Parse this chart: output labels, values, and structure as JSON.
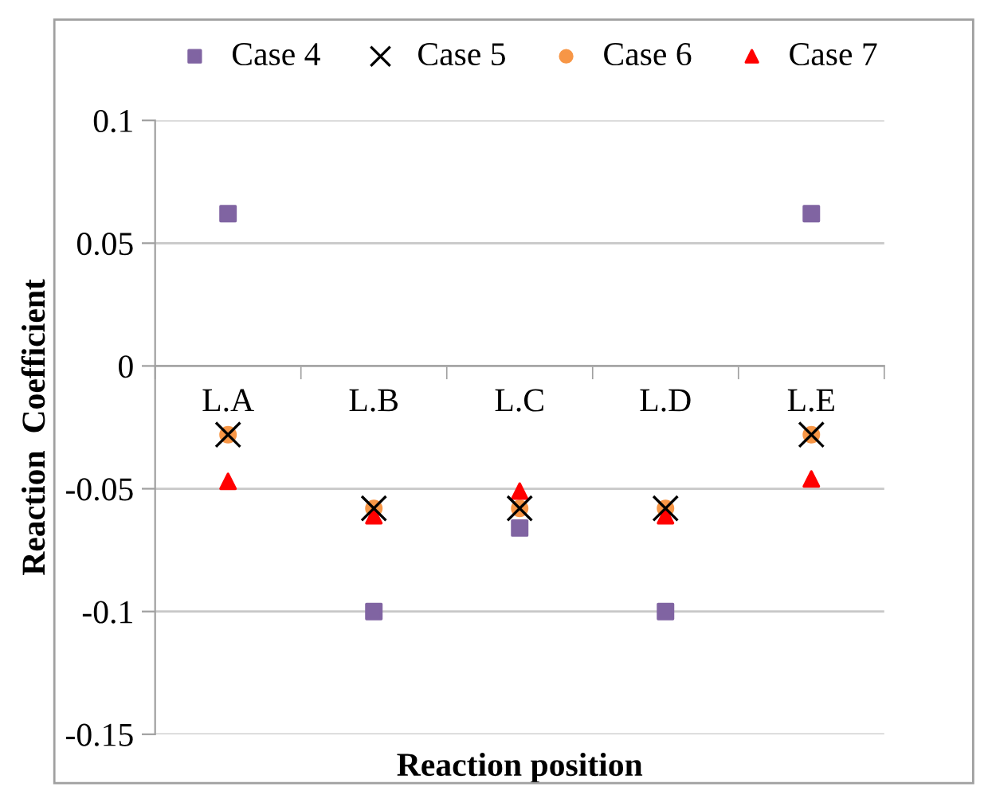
{
  "chart_data": {
    "type": "scatter",
    "xlabel": "Reaction position",
    "ylabel": "Reaction  Coefficient",
    "categories": [
      "L.A",
      "L.B",
      "L.C",
      "L.D",
      "L.E"
    ],
    "series": [
      {
        "name": "Case 4",
        "color": "#8064a2",
        "marker": "square",
        "values": [
          0.062,
          -0.1,
          -0.066,
          -0.1,
          0.062
        ]
      },
      {
        "name": "Case 5",
        "color": "#000000",
        "marker": "cross",
        "values": [
          -0.028,
          -0.058,
          -0.058,
          -0.058,
          -0.028
        ]
      },
      {
        "name": "Case 6",
        "color": "#f79646",
        "marker": "circle",
        "values": [
          -0.028,
          -0.058,
          -0.058,
          -0.058,
          -0.028
        ]
      },
      {
        "name": "Case 7",
        "color": "#ff0000",
        "marker": "triangle",
        "values": [
          -0.047,
          -0.061,
          -0.051,
          -0.061,
          -0.046
        ]
      }
    ],
    "ylim": [
      -0.15,
      0.1
    ],
    "yticks": [
      -0.15,
      -0.1,
      -0.05,
      0,
      0.05,
      0.1
    ],
    "grid": "y",
    "legend": "top"
  }
}
